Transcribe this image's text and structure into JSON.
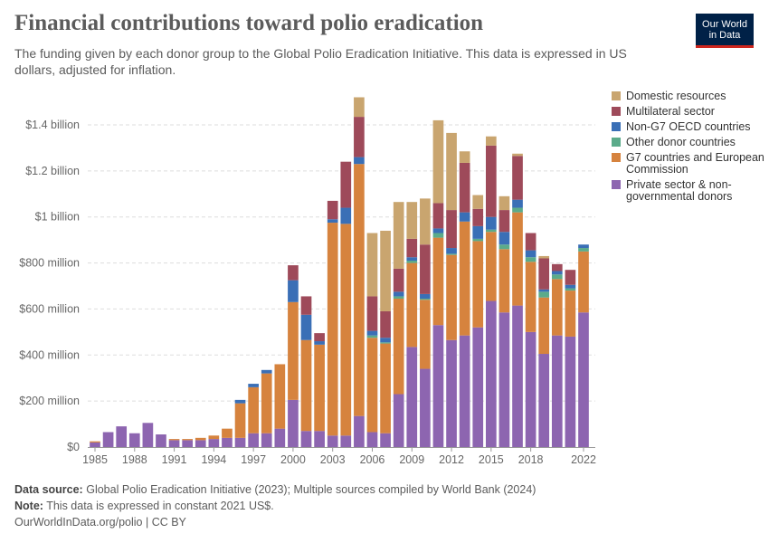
{
  "header": {
    "title": "Financial contributions toward polio eradication",
    "subtitle": "The funding given by each donor group to the Global Polio Eradication Initiative. This data is expressed in US dollars, adjusted for inflation.",
    "logo_line1": "Our World",
    "logo_line2": "in Data"
  },
  "footer": {
    "source_label": "Data source:",
    "source_text": "Global Polio Eradication Initiative (2023); Multiple sources compiled by World Bank (2024)",
    "note_label": "Note:",
    "note_text": "This data is expressed in constant 2021 US$.",
    "url_text": "OurWorldInData.org/polio | CC BY"
  },
  "chart_data": {
    "type": "bar",
    "stacked": true,
    "x": [
      1985,
      1986,
      1987,
      1988,
      1989,
      1990,
      1991,
      1992,
      1993,
      1994,
      1995,
      1996,
      1997,
      1998,
      1999,
      2000,
      2001,
      2002,
      2003,
      2004,
      2005,
      2006,
      2007,
      2008,
      2009,
      2010,
      2011,
      2012,
      2013,
      2014,
      2015,
      2016,
      2017,
      2018,
      2019,
      2020,
      2021,
      2022
    ],
    "xticks": [
      "1985",
      "1988",
      "1991",
      "1994",
      "1997",
      "2000",
      "2003",
      "2006",
      "2009",
      "2012",
      "2015",
      "2018",
      "2022"
    ],
    "xtick_values": [
      1985,
      1988,
      1991,
      1994,
      1997,
      2000,
      2003,
      2006,
      2009,
      2012,
      2015,
      2018,
      2022
    ],
    "ylim": [
      0,
      1600
    ],
    "yticks": [
      {
        "value": 0,
        "label": "$0"
      },
      {
        "value": 200,
        "label": "$200 million"
      },
      {
        "value": 400,
        "label": "$400 million"
      },
      {
        "value": 600,
        "label": "$600 million"
      },
      {
        "value": 800,
        "label": "$800 million"
      },
      {
        "value": 1000,
        "label": "$1 billion"
      },
      {
        "value": 1200,
        "label": "$1.2 billion"
      },
      {
        "value": 1400,
        "label": "$1.4 billion"
      }
    ],
    "grid": true,
    "legend_position": "right",
    "series": [
      {
        "name": "Private sector & non-governmental donors",
        "color": "#8d65b0",
        "values": [
          20,
          65,
          90,
          60,
          105,
          55,
          30,
          30,
          30,
          35,
          40,
          40,
          60,
          60,
          80,
          205,
          70,
          70,
          50,
          50,
          135,
          65,
          60,
          230,
          435,
          340,
          530,
          465,
          485,
          520,
          635,
          585,
          615,
          500,
          405,
          485,
          480,
          585
        ]
      },
      {
        "name": "G7 countries and European Commission",
        "color": "#d6833e",
        "values": [
          5,
          0,
          0,
          0,
          0,
          0,
          5,
          5,
          10,
          15,
          40,
          150,
          200,
          260,
          280,
          425,
          395,
          375,
          925,
          920,
          1095,
          410,
          390,
          415,
          365,
          300,
          380,
          370,
          495,
          375,
          300,
          275,
          405,
          305,
          245,
          245,
          200,
          265
        ]
      },
      {
        "name": "Other donor countries",
        "color": "#5bab8a",
        "values": [
          0,
          0,
          0,
          0,
          0,
          0,
          0,
          0,
          0,
          0,
          0,
          0,
          0,
          0,
          0,
          0,
          0,
          0,
          0,
          0,
          0,
          10,
          5,
          10,
          10,
          5,
          20,
          5,
          0,
          10,
          10,
          20,
          20,
          20,
          25,
          20,
          10,
          15
        ]
      },
      {
        "name": "Non-G7 OECD countries",
        "color": "#3a6fb6",
        "values": [
          0,
          0,
          0,
          0,
          0,
          0,
          0,
          0,
          0,
          0,
          0,
          15,
          15,
          15,
          0,
          95,
          110,
          15,
          15,
          70,
          30,
          20,
          20,
          20,
          15,
          20,
          20,
          25,
          40,
          55,
          55,
          55,
          35,
          30,
          10,
          15,
          15,
          15
        ]
      },
      {
        "name": "Multilateral sector",
        "color": "#9e4a5a",
        "values": [
          0,
          0,
          0,
          0,
          0,
          0,
          0,
          0,
          0,
          0,
          0,
          0,
          0,
          0,
          0,
          65,
          80,
          35,
          80,
          200,
          175,
          150,
          115,
          100,
          80,
          215,
          110,
          165,
          215,
          75,
          310,
          95,
          190,
          75,
          135,
          30,
          65,
          0
        ]
      },
      {
        "name": "Domestic resources",
        "color": "#c9a56f",
        "values": [
          0,
          0,
          0,
          0,
          0,
          0,
          0,
          0,
          0,
          0,
          0,
          0,
          0,
          0,
          0,
          0,
          0,
          0,
          0,
          0,
          85,
          275,
          350,
          290,
          160,
          200,
          360,
          335,
          50,
          60,
          40,
          60,
          10,
          0,
          10,
          0,
          0,
          0
        ]
      }
    ]
  }
}
